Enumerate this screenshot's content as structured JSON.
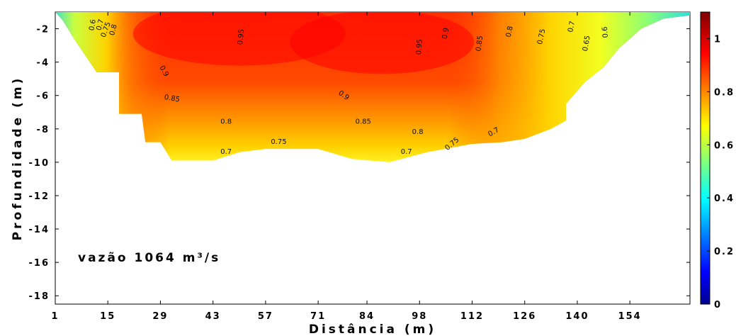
{
  "chart_data": {
    "type": "heatmap",
    "title": "",
    "xlabel": "Distância (m)",
    "ylabel": "Profundidade (m)",
    "annotation": "vazão 1064 m³/s",
    "xlim": [
      1,
      170
    ],
    "ylim": [
      -18.5,
      -1
    ],
    "x_ticks": [
      "1",
      "15",
      "29",
      "43",
      "57",
      "71",
      "84",
      "98",
      "112",
      "126",
      "140",
      "154"
    ],
    "x_tick_values": [
      1,
      15,
      29,
      43,
      57,
      71,
      84,
      98,
      112,
      126,
      140,
      154
    ],
    "y_ticks": [
      "-2",
      "-4",
      "-6",
      "-8",
      "-10",
      "-12",
      "-14",
      "-16",
      "-18"
    ],
    "y_tick_values": [
      -2,
      -4,
      -6,
      -8,
      -10,
      -12,
      -14,
      -16,
      -18
    ],
    "colorbar": {
      "min": 0,
      "max": 1.1,
      "ticks": [
        "0",
        "0.2",
        "0.4",
        "0.6",
        "0.8",
        "1"
      ],
      "tick_values": [
        0,
        0.2,
        0.4,
        0.6,
        0.8,
        1.0
      ],
      "colormap": "jet"
    },
    "bed_profile": [
      {
        "x": 1,
        "y": -1.0
      },
      {
        "x": 3,
        "y": -1.5
      },
      {
        "x": 6,
        "y": -2.6
      },
      {
        "x": 12,
        "y": -4.6
      },
      {
        "x": 18,
        "y": -4.6
      },
      {
        "x": 18,
        "y": -7.1
      },
      {
        "x": 24,
        "y": -7.1
      },
      {
        "x": 25,
        "y": -8.8
      },
      {
        "x": 29,
        "y": -8.8
      },
      {
        "x": 32,
        "y": -9.9
      },
      {
        "x": 43,
        "y": -9.9
      },
      {
        "x": 50,
        "y": -9.4
      },
      {
        "x": 57,
        "y": -9.2
      },
      {
        "x": 71,
        "y": -9.2
      },
      {
        "x": 80,
        "y": -9.8
      },
      {
        "x": 90,
        "y": -10.0
      },
      {
        "x": 100,
        "y": -9.4
      },
      {
        "x": 112,
        "y": -8.9
      },
      {
        "x": 120,
        "y": -8.8
      },
      {
        "x": 126,
        "y": -8.6
      },
      {
        "x": 133,
        "y": -8.0
      },
      {
        "x": 137,
        "y": -7.5
      },
      {
        "x": 137,
        "y": -6.5
      },
      {
        "x": 142,
        "y": -5.2
      },
      {
        "x": 147,
        "y": -4.3
      },
      {
        "x": 151,
        "y": -3.2
      },
      {
        "x": 157,
        "y": -2.0
      },
      {
        "x": 163,
        "y": -1.4
      },
      {
        "x": 170,
        "y": -1.2
      },
      {
        "x": 170,
        "y": -1.0
      }
    ],
    "velocity_cores": [
      {
        "x": 50,
        "y": -2.3,
        "value": 1.0
      },
      {
        "x": 88,
        "y": -2.8,
        "value": 1.0
      }
    ],
    "contour_labels": [
      {
        "x": 11.5,
        "y": -1.8,
        "value": "0.6",
        "angle": -80
      },
      {
        "x": 13.5,
        "y": -1.8,
        "value": "0.7",
        "angle": -75
      },
      {
        "x": 15,
        "y": -2.1,
        "value": "0.75",
        "angle": -70
      },
      {
        "x": 17,
        "y": -2.1,
        "value": "0.8",
        "angle": -75
      },
      {
        "x": 51,
        "y": -2.5,
        "value": "0.95",
        "angle": -85
      },
      {
        "x": 98.5,
        "y": -3.1,
        "value": "0.95",
        "angle": -85
      },
      {
        "x": 105.5,
        "y": -2.3,
        "value": "0.9",
        "angle": -80
      },
      {
        "x": 114.5,
        "y": -2.9,
        "value": "0.85",
        "angle": -82
      },
      {
        "x": 122.5,
        "y": -2.2,
        "value": "0.8",
        "angle": -78
      },
      {
        "x": 131,
        "y": -2.5,
        "value": "0.75",
        "angle": -78
      },
      {
        "x": 139,
        "y": -1.9,
        "value": "0.7",
        "angle": -78
      },
      {
        "x": 143,
        "y": -2.9,
        "value": "0.65",
        "angle": -80
      },
      {
        "x": 148,
        "y": -2.2,
        "value": "0.6",
        "angle": -95
      },
      {
        "x": 29.5,
        "y": -4.6,
        "value": "0.9",
        "angle": 60
      },
      {
        "x": 32,
        "y": -6.3,
        "value": "0.85",
        "angle": 10
      },
      {
        "x": 77.5,
        "y": -6.1,
        "value": "0.9",
        "angle": 35
      },
      {
        "x": 46.5,
        "y": -7.7,
        "value": "0.8",
        "angle": 0
      },
      {
        "x": 83,
        "y": -7.7,
        "value": "0.85",
        "angle": 0
      },
      {
        "x": 97.5,
        "y": -8.3,
        "value": "0.8",
        "angle": 0
      },
      {
        "x": 118,
        "y": -8.3,
        "value": "0.7",
        "angle": -30
      },
      {
        "x": 60.5,
        "y": -8.9,
        "value": "0.75",
        "angle": 0
      },
      {
        "x": 107,
        "y": -9.0,
        "value": "0.75",
        "angle": -40
      },
      {
        "x": 46.5,
        "y": -9.5,
        "value": "0.7",
        "angle": 0
      },
      {
        "x": 94.5,
        "y": -9.5,
        "value": "0.7",
        "angle": 0
      }
    ]
  }
}
